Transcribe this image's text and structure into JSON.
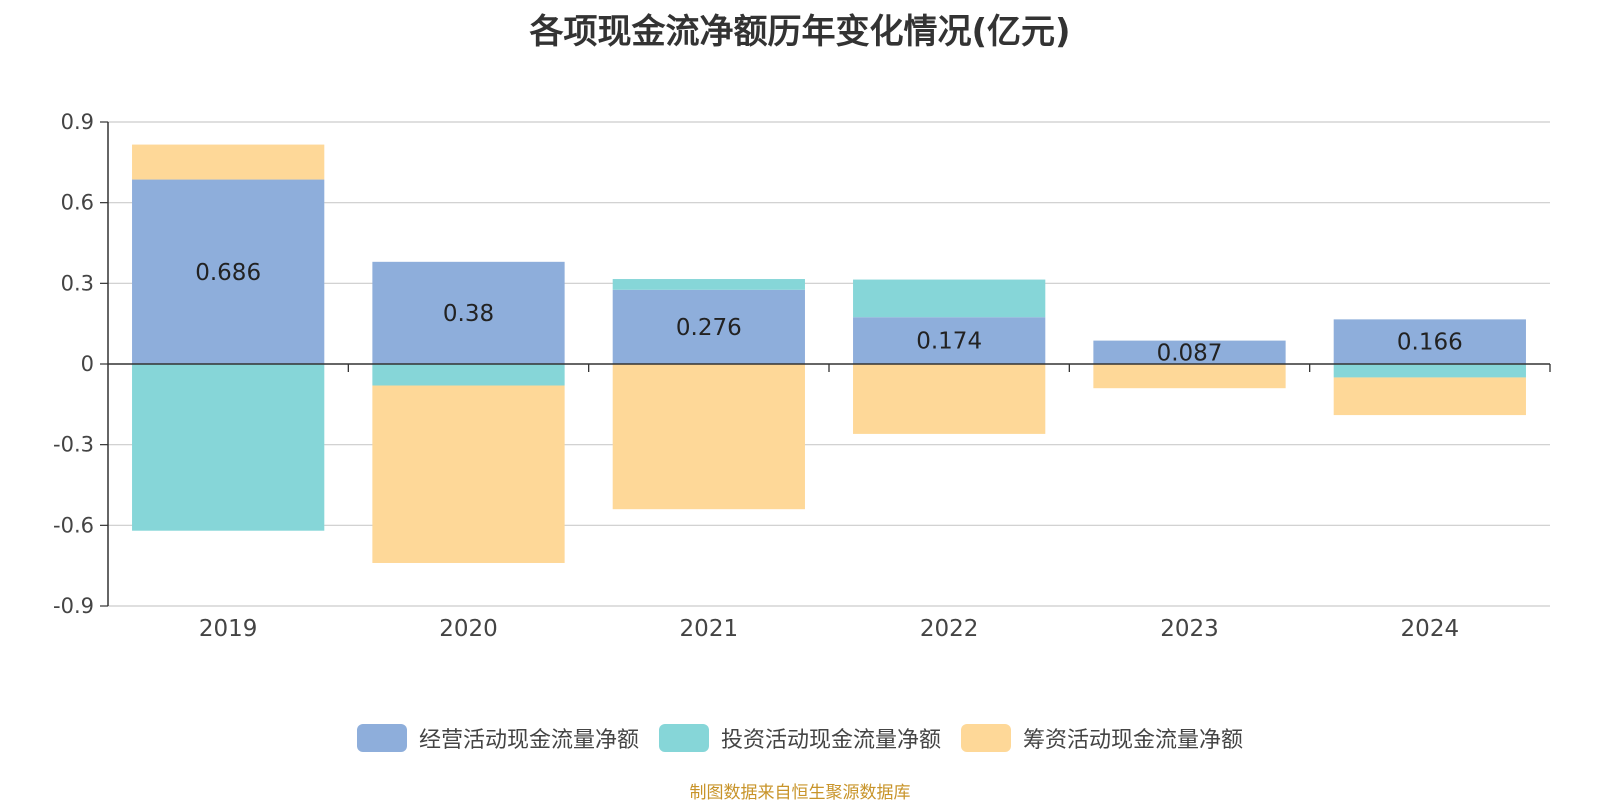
{
  "chart_data": {
    "type": "bar",
    "stacked": true,
    "title": "各项现金流净额历年变化情况(亿元)",
    "categories": [
      "2019",
      "2020",
      "2021",
      "2022",
      "2023",
      "2024"
    ],
    "series": [
      {
        "name": "经营活动现金流量净额",
        "color": "#8eaedb",
        "values": [
          0.686,
          0.38,
          0.276,
          0.174,
          0.087,
          0.166
        ]
      },
      {
        "name": "投资活动现金流量净额",
        "color": "#86d6d8",
        "values": [
          -0.62,
          -0.08,
          0.04,
          0.14,
          0.0,
          -0.05
        ]
      },
      {
        "name": "筹资活动现金流量净额",
        "color": "#fed898",
        "values": [
          0.13,
          -0.66,
          -0.54,
          -0.26,
          -0.09,
          -0.14
        ]
      }
    ],
    "data_labels": [
      "0.686",
      "0.38",
      "0.276",
      "0.174",
      "0.087",
      "0.166"
    ],
    "y_ticks": [
      "0.9",
      "0.6",
      "0.3",
      "0",
      "-0.3",
      "-0.6",
      "-0.9"
    ],
    "ylim": [
      -0.9,
      0.9
    ],
    "grid": true,
    "legend_position": "bottom"
  },
  "source_note": "制图数据来自恒生聚源数据库"
}
